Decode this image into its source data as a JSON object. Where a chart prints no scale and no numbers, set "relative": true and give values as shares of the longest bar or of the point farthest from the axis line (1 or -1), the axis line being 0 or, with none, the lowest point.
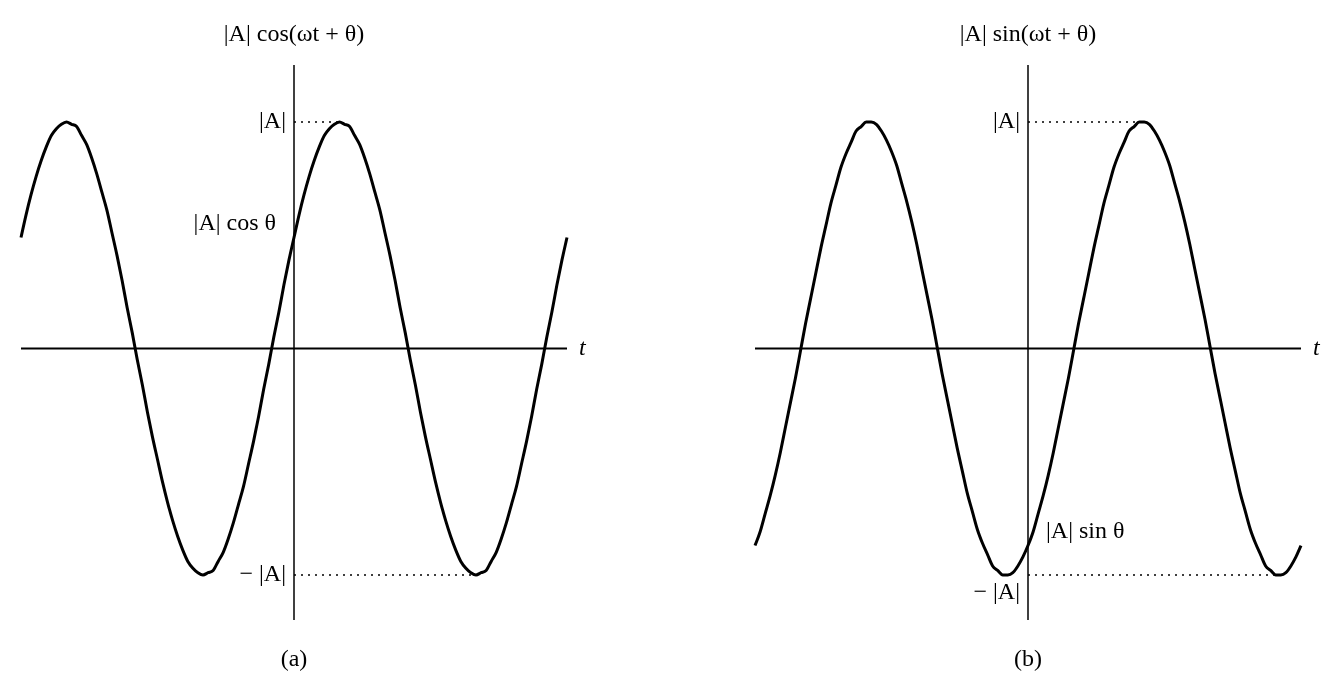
{
  "chart_data": [
    {
      "type": "line",
      "relative": true,
      "title": "(a)",
      "ylabel": "|A| cos(ωt + θ)",
      "xlabel": "t",
      "categories": [
        null,
        null,
        null,
        null,
        null,
        null,
        null,
        null,
        null,
        null,
        null,
        null,
        null,
        null,
        null,
        null,
        null,
        null,
        null,
        null,
        null,
        null,
        null,
        null,
        null,
        null,
        null,
        null,
        null,
        null,
        null,
        null,
        null,
        null,
        null,
        null,
        null,
        null,
        null,
        null,
        null,
        null,
        null,
        null,
        null,
        null,
        null,
        null,
        null,
        null,
        null,
        null,
        null,
        null,
        null,
        null,
        null,
        null,
        null,
        null,
        null,
        null,
        null,
        null,
        null,
        null,
        null,
        null,
        null,
        null,
        null,
        null,
        null,
        null,
        null,
        null,
        null,
        null,
        null,
        null,
        null,
        null,
        null,
        null,
        null,
        null,
        null,
        null,
        null,
        null,
        null,
        null,
        null,
        null,
        null,
        null,
        null,
        null,
        null,
        null,
        null,
        null,
        null,
        null,
        null,
        null,
        null,
        null,
        null
      ],
      "series": [
        {
          "color": "#000000",
          "values": [
            0.49,
            0.59,
            0.68,
            0.76,
            0.83,
            0.89,
            0.94,
            0.97,
            0.99,
            1,
            0.99,
            0.98,
            0.94,
            0.9,
            0.84,
            0.77,
            0.69,
            0.61,
            0.51,
            0.41,
            0.3,
            0.18,
            0.07,
            -0.05,
            -0.16,
            -0.28,
            -0.39,
            -0.49,
            -0.59,
            -0.68,
            -0.76,
            -0.83,
            -0.89,
            -0.94,
            -0.97,
            -0.99,
            -1,
            -0.99,
            -0.98,
            -0.94,
            -0.9,
            -0.84,
            -0.77,
            -0.69,
            -0.61,
            -0.51,
            -0.41,
            -0.3,
            -0.18,
            -0.07,
            0.05,
            0.16,
            0.28,
            0.39,
            0.49,
            0.59,
            0.68,
            0.76,
            0.83,
            0.89,
            0.94,
            0.97,
            0.99,
            1,
            0.99,
            0.98,
            0.94,
            0.9,
            0.84,
            0.77,
            0.69,
            0.61,
            0.51,
            0.41,
            0.3,
            0.18,
            0.07,
            -0.05,
            -0.16,
            -0.28,
            -0.39,
            -0.49,
            -0.59,
            -0.68,
            -0.76,
            -0.83,
            -0.89,
            -0.94,
            -0.97,
            -0.99,
            -1,
            -0.99,
            -0.98,
            -0.94,
            -0.9,
            -0.84,
            -0.77,
            -0.69,
            -0.61,
            -0.51,
            -0.41,
            -0.3,
            -0.18,
            -0.07,
            0.05,
            0.16,
            0.28,
            0.39,
            0.49
          ]
        }
      ],
      "ref_lines": [
        {
          "axis": "y",
          "value": 1,
          "label": "|A|",
          "line_style": "dotted"
        },
        {
          "axis": "y",
          "value": -1,
          "label": "− |A|",
          "line_style": "dotted"
        }
      ],
      "annotations": [
        "|A| cos θ"
      ]
    },
    {
      "type": "line",
      "relative": true,
      "title": "(b)",
      "ylabel": "|A| sin(ωt + θ)",
      "xlabel": "t",
      "categories": [
        null,
        null,
        null,
        null,
        null,
        null,
        null,
        null,
        null,
        null,
        null,
        null,
        null,
        null,
        null,
        null,
        null,
        null,
        null,
        null,
        null,
        null,
        null,
        null,
        null,
        null,
        null,
        null,
        null,
        null,
        null,
        null,
        null,
        null,
        null,
        null,
        null,
        null,
        null,
        null,
        null,
        null,
        null,
        null,
        null,
        null,
        null,
        null,
        null,
        null,
        null,
        null,
        null,
        null,
        null,
        null,
        null,
        null,
        null,
        null,
        null,
        null,
        null,
        null,
        null,
        null,
        null,
        null,
        null,
        null,
        null,
        null,
        null,
        null,
        null,
        null,
        null,
        null,
        null,
        null,
        null,
        null,
        null,
        null,
        null,
        null,
        null,
        null,
        null,
        null,
        null,
        null,
        null,
        null,
        null,
        null,
        null,
        null,
        null,
        null,
        null,
        null,
        null,
        null,
        null,
        null,
        null,
        null,
        null
      ],
      "series": [
        {
          "color": "#000000",
          "values": [
            -0.87,
            -0.81,
            -0.73,
            -0.65,
            -0.56,
            -0.46,
            -0.35,
            -0.24,
            -0.13,
            -0.01,
            0.11,
            0.22,
            0.33,
            0.44,
            0.54,
            0.64,
            0.72,
            0.8,
            0.86,
            0.91,
            0.96,
            0.98,
            1,
            1,
            0.99,
            0.96,
            0.92,
            0.87,
            0.81,
            0.73,
            0.65,
            0.56,
            0.46,
            0.35,
            0.24,
            0.13,
            0.01,
            -0.11,
            -0.22,
            -0.33,
            -0.44,
            -0.54,
            -0.64,
            -0.72,
            -0.8,
            -0.86,
            -0.91,
            -0.96,
            -0.98,
            -1,
            -1,
            -0.99,
            -0.96,
            -0.92,
            -0.87,
            -0.81,
            -0.73,
            -0.65,
            -0.56,
            -0.46,
            -0.35,
            -0.24,
            -0.13,
            -0.01,
            0.11,
            0.22,
            0.33,
            0.44,
            0.54,
            0.64,
            0.72,
            0.8,
            0.86,
            0.91,
            0.96,
            0.98,
            1,
            1,
            0.99,
            0.96,
            0.92,
            0.87,
            0.81,
            0.73,
            0.65,
            0.56,
            0.46,
            0.35,
            0.24,
            0.13,
            0.01,
            -0.11,
            -0.22,
            -0.33,
            -0.44,
            -0.54,
            -0.64,
            -0.72,
            -0.8,
            -0.86,
            -0.91,
            -0.96,
            -0.98,
            -1,
            -1,
            -0.99,
            -0.96,
            -0.92,
            -0.87
          ]
        }
      ],
      "ref_lines": [
        {
          "axis": "y",
          "value": 1,
          "label": "|A|",
          "line_style": "dotted"
        },
        {
          "axis": "y",
          "value": -1,
          "label": "− |A|",
          "line_style": "dotted"
        }
      ],
      "annotations": [
        "|A| sin θ"
      ]
    }
  ]
}
